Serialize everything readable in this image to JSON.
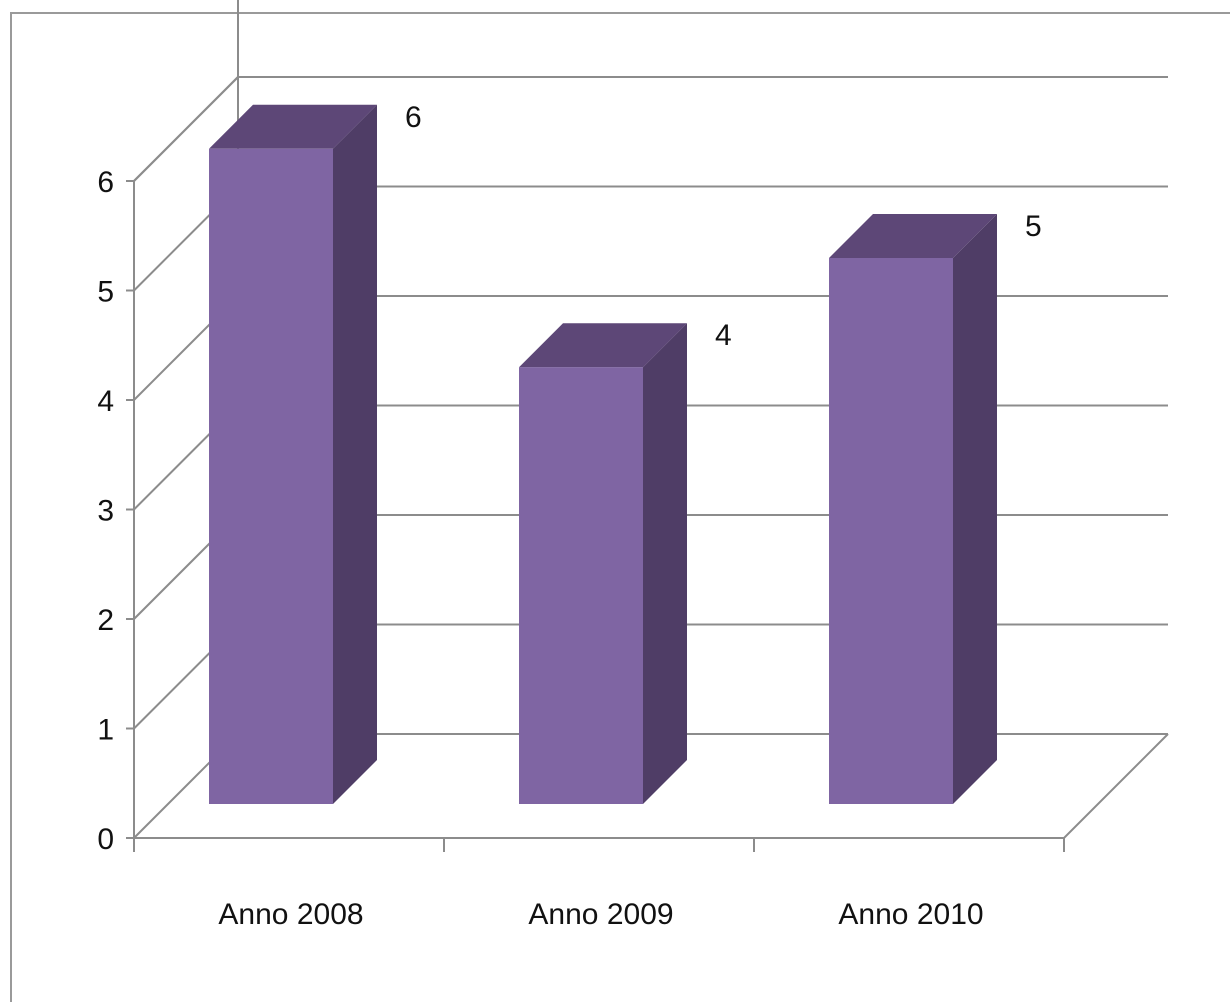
{
  "chart_data": {
    "type": "bar",
    "style": "3d-column",
    "categories": [
      "Anno 2008",
      "Anno 2009",
      "Anno 2010"
    ],
    "values": [
      6,
      4,
      5
    ],
    "data_labels": [
      "6",
      "4",
      "5"
    ],
    "ylim": [
      0,
      6
    ],
    "yticks": [
      "0",
      "1",
      "2",
      "3",
      "4",
      "5",
      "6"
    ],
    "grid": true,
    "legend": "none",
    "colors": {
      "front": "#7f65a3",
      "side": "#4f3d66",
      "top": "#5d4777",
      "grid": "#8c8c8c"
    }
  }
}
